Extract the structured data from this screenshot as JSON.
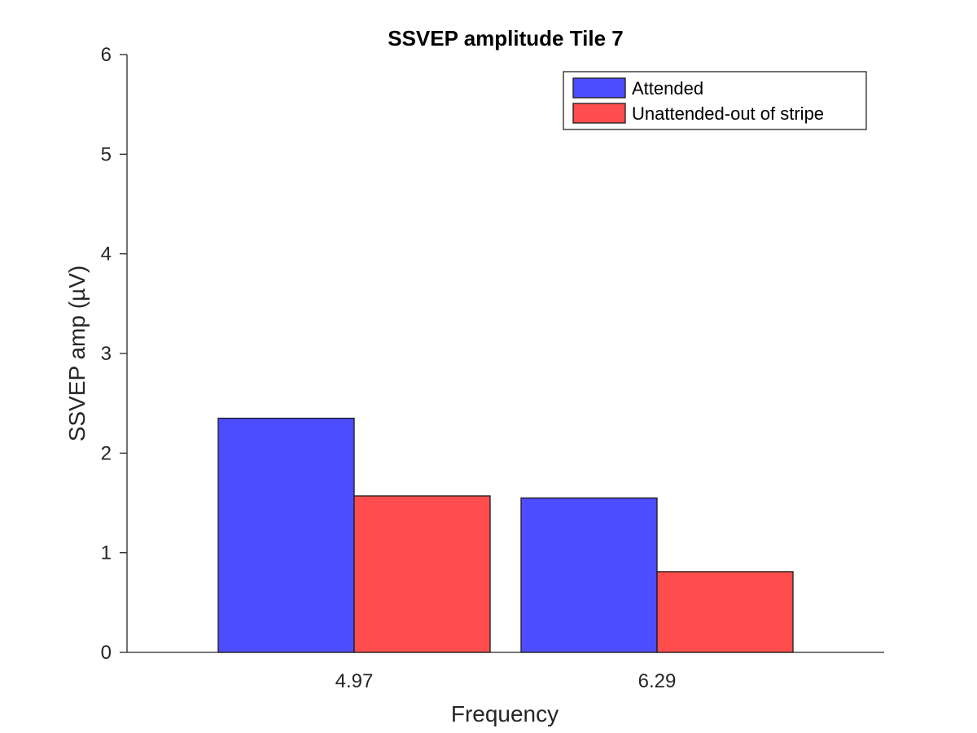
{
  "chart_data": {
    "type": "bar",
    "title": "SSVEP amplitude Tile 7",
    "xlabel": "Frequency",
    "ylabel": "SSVEP amp (µV)",
    "categories": [
      "4.97",
      "6.29"
    ],
    "series": [
      {
        "name": "Attended",
        "values": [
          2.35,
          1.55
        ],
        "color": "#4d4dff"
      },
      {
        "name": "Unattended-out of stripe",
        "values": [
          1.57,
          0.81
        ],
        "color": "#ff4d4d"
      }
    ],
    "ylim": [
      0,
      6
    ],
    "yticks": [
      0,
      1,
      2,
      3,
      4,
      5,
      6
    ],
    "grid": false,
    "legend_position": "top-right"
  }
}
